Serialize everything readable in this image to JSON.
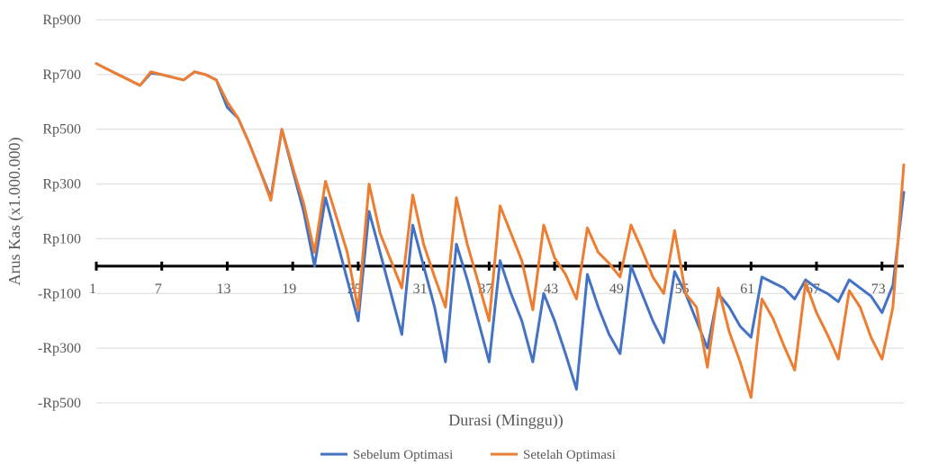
{
  "chart_data": {
    "type": "line",
    "title": "",
    "xlabel": "Durasi (Minggu))",
    "ylabel": "Arus Kas (x1.000.000)",
    "ylim": [
      -500,
      900
    ],
    "xlim": [
      1,
      75
    ],
    "y_ticks": [
      -500,
      -300,
      -100,
      100,
      300,
      500,
      700,
      900
    ],
    "y_tick_labels": [
      "-Rp500",
      "-Rp300",
      "-Rp100",
      "Rp100",
      "Rp300",
      "Rp500",
      "Rp700",
      "Rp900"
    ],
    "x_tick_labels": [
      "1",
      "7",
      "13",
      "19",
      "25",
      "31",
      "37",
      "43",
      "49",
      "55",
      "61",
      "67",
      "73"
    ],
    "x_tick_values": [
      1,
      7,
      13,
      19,
      25,
      31,
      37,
      43,
      49,
      55,
      61,
      67,
      73
    ],
    "gridlines": true,
    "legend_position": "bottom",
    "series": [
      {
        "name": "Sebelum Optimasi",
        "color": "#4472C4",
        "x": [
          1,
          2,
          3,
          4,
          5,
          6,
          7,
          8,
          9,
          10,
          11,
          12,
          13,
          14,
          15,
          16,
          17,
          18,
          19,
          20,
          21,
          22,
          23,
          24,
          25,
          26,
          27,
          28,
          29,
          30,
          31,
          32,
          33,
          34,
          35,
          36,
          37,
          38,
          39,
          40,
          41,
          42,
          43,
          44,
          45,
          46,
          47,
          48,
          49,
          50,
          51,
          52,
          53,
          54,
          55,
          56,
          57,
          58,
          59,
          60,
          61,
          62,
          63,
          64,
          65,
          66,
          67,
          68,
          69,
          70,
          71,
          72,
          73,
          74,
          75
        ],
        "values": [
          740,
          720,
          700,
          680,
          660,
          705,
          700,
          690,
          680,
          710,
          700,
          680,
          580,
          540,
          450,
          350,
          250,
          500,
          350,
          200,
          0,
          250,
          100,
          -50,
          -200,
          200,
          50,
          -100,
          -250,
          150,
          0,
          -150,
          -350,
          80,
          -50,
          -200,
          -350,
          20,
          -100,
          -200,
          -350,
          -100,
          -200,
          -320,
          -450,
          -30,
          -150,
          -250,
          -320,
          0,
          -100,
          -200,
          -280,
          -20,
          -100,
          -200,
          -300,
          -100,
          -150,
          -220,
          -260,
          -40,
          -60,
          -80,
          -120,
          -50,
          -80,
          -100,
          -130,
          -50,
          -80,
          -110,
          -170,
          -70,
          270
        ]
      },
      {
        "name": "Setelah Optimasi",
        "color": "#ED7D31",
        "x": [
          1,
          2,
          3,
          4,
          5,
          6,
          7,
          8,
          9,
          10,
          11,
          12,
          13,
          14,
          15,
          16,
          17,
          18,
          19,
          20,
          21,
          22,
          23,
          24,
          25,
          26,
          27,
          28,
          29,
          30,
          31,
          32,
          33,
          34,
          35,
          36,
          37,
          38,
          39,
          40,
          41,
          42,
          43,
          44,
          45,
          46,
          47,
          48,
          49,
          50,
          51,
          52,
          53,
          54,
          55,
          56,
          57,
          58,
          59,
          60,
          61,
          62,
          63,
          64,
          65,
          66,
          67,
          68,
          69,
          70,
          71,
          72,
          73,
          74,
          75
        ],
        "values": [
          740,
          720,
          700,
          680,
          660,
          710,
          700,
          690,
          680,
          710,
          700,
          680,
          600,
          540,
          450,
          350,
          240,
          500,
          360,
          230,
          50,
          310,
          180,
          50,
          -160,
          300,
          120,
          20,
          -80,
          260,
          80,
          -40,
          -150,
          250,
          80,
          -60,
          -200,
          220,
          120,
          20,
          -160,
          150,
          30,
          -30,
          -120,
          140,
          50,
          10,
          -40,
          150,
          60,
          -40,
          -100,
          130,
          -100,
          -150,
          -370,
          -80,
          -240,
          -350,
          -480,
          -120,
          -190,
          -290,
          -380,
          -60,
          -170,
          -250,
          -340,
          -90,
          -150,
          -260,
          -340,
          -150,
          370
        ]
      }
    ]
  }
}
